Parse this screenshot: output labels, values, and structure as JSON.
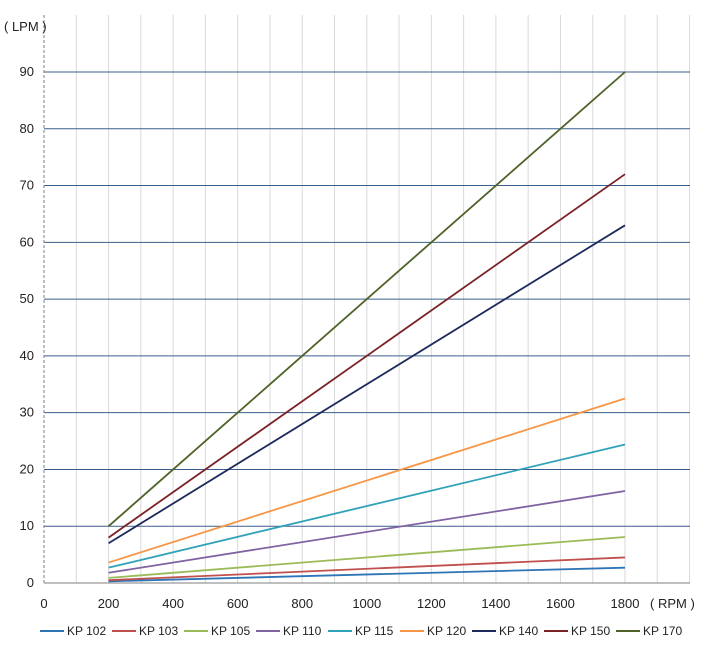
{
  "chart_data": {
    "type": "line",
    "ylabel": "( LPM )",
    "xlabel": "( RPM )",
    "xlim": [
      0,
      2000
    ],
    "ylim": [
      0,
      90
    ],
    "x_ticks": [
      0,
      200,
      400,
      600,
      800,
      1000,
      1200,
      1400,
      1600,
      1800
    ],
    "y_ticks": [
      0,
      10,
      20,
      30,
      40,
      50,
      60,
      70,
      80,
      90
    ],
    "grid": true,
    "legend_position": "bottom",
    "x": [
      200,
      1800
    ],
    "series": [
      {
        "name": "KP 102",
        "color": "#2e75b6",
        "values": [
          0.3,
          2.7
        ]
      },
      {
        "name": "KP 103",
        "color": "#c0504d",
        "values": [
          0.5,
          4.5
        ]
      },
      {
        "name": "KP 105",
        "color": "#9bbb59",
        "values": [
          0.9,
          8.1
        ]
      },
      {
        "name": "KP 110",
        "color": "#8064a2",
        "values": [
          1.8,
          16.2
        ]
      },
      {
        "name": "KP 115",
        "color": "#31a2b8",
        "values": [
          2.7,
          24.4
        ]
      },
      {
        "name": "KP 120",
        "color": "#f79646",
        "values": [
          3.6,
          32.5
        ]
      },
      {
        "name": "KP 140",
        "color": "#1f2a5c",
        "values": [
          7.0,
          63.0
        ]
      },
      {
        "name": "KP 150",
        "color": "#7b2226",
        "values": [
          8.0,
          72.0
        ]
      },
      {
        "name": "KP 170",
        "color": "#4f6228",
        "values": [
          10.0,
          90.0
        ]
      }
    ]
  }
}
